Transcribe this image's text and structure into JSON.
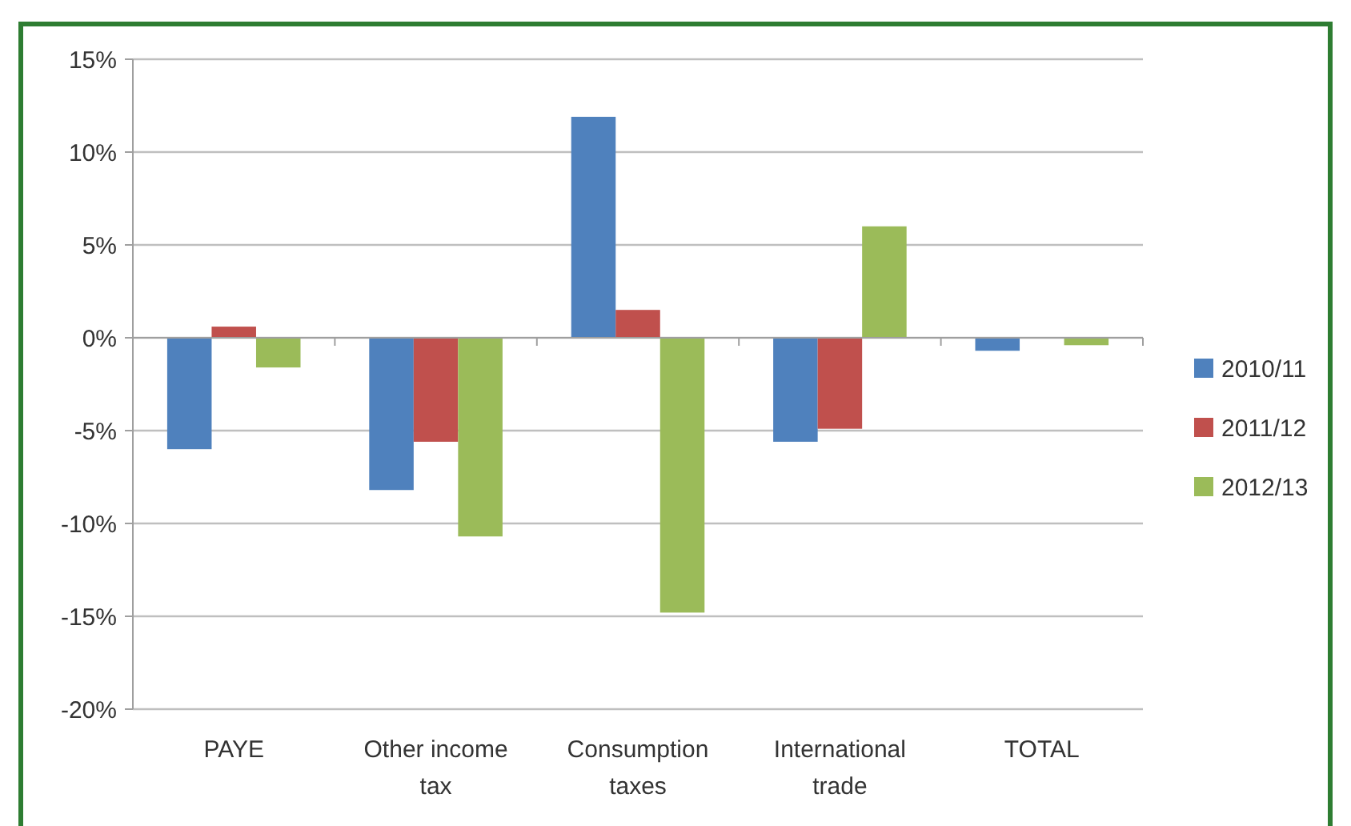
{
  "chart_data": {
    "type": "bar",
    "categories": [
      "PAYE",
      "Other income tax",
      "Consumption taxes",
      "International trade",
      "TOTAL"
    ],
    "series": [
      {
        "name": "2010/11",
        "color": "#4f81bd",
        "values": [
          -6.0,
          -8.2,
          11.9,
          -5.6,
          -0.7
        ]
      },
      {
        "name": "2011/12",
        "color": "#c0504d",
        "values": [
          0.6,
          -5.6,
          1.5,
          -4.9,
          0
        ]
      },
      {
        "name": "2012/13",
        "color": "#9bbb59",
        "values": [
          -1.6,
          -10.7,
          -14.8,
          6.0,
          -0.4
        ]
      }
    ],
    "ylim": [
      -20,
      15
    ],
    "yticks": [
      {
        "value": -20,
        "label": "-20%"
      },
      {
        "value": -15,
        "label": "-15%"
      },
      {
        "value": -10,
        "label": "-10%"
      },
      {
        "value": -5,
        "label": "-5%"
      },
      {
        "value": 0,
        "label": "0%"
      },
      {
        "value": 5,
        "label": "5%"
      },
      {
        "value": 10,
        "label": "10%"
      },
      {
        "value": 15,
        "label": "15%"
      }
    ],
    "grid": "y",
    "legend": "right"
  }
}
